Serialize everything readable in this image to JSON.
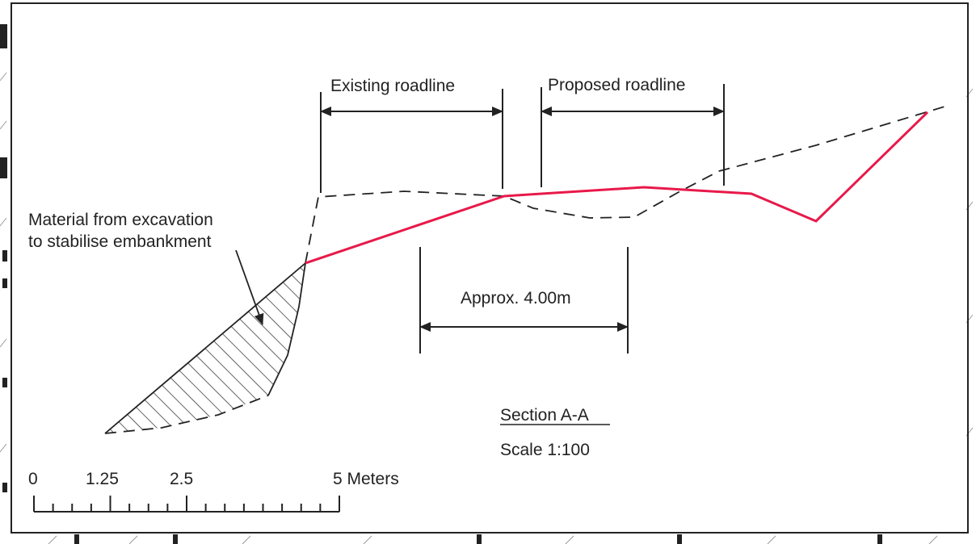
{
  "labels": {
    "existing_roadline": "Existing roadline",
    "proposed_roadline": "Proposed roadline",
    "material_line1": "Material from excavation",
    "material_line2": "to stabilise embankment",
    "approx_width": "Approx. 4.00m",
    "section_title": "Section A-A",
    "scale": "Scale 1:100"
  },
  "scale_bar": {
    "tick_labels": [
      "0",
      "1.25",
      "2.5",
      "5 Meters"
    ]
  },
  "colors": {
    "proposed_profile": "#e8194a",
    "linework": "#222222"
  }
}
